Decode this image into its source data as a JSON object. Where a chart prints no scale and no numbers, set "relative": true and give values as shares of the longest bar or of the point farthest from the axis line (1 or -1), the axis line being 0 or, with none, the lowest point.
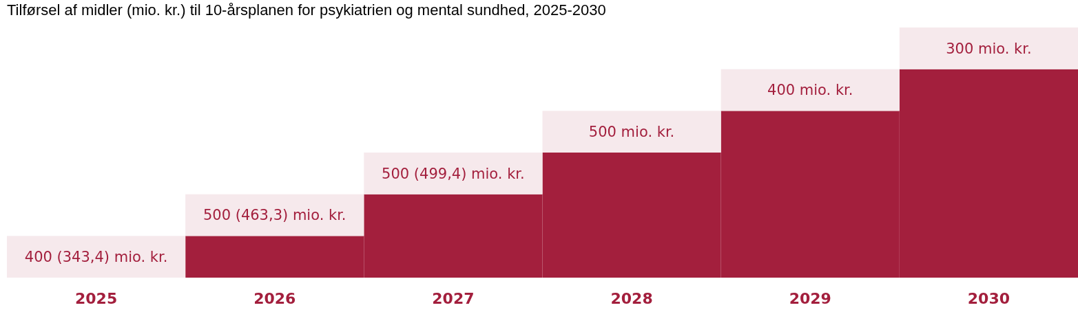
{
  "chart_data": {
    "type": "bar",
    "title": "Tilførsel af midler (mio. kr.) til 10-årsplanen for psykiatrien og mental sundhed, 2025-2030",
    "categories": [
      "2025",
      "2026",
      "2027",
      "2028",
      "2029",
      "2030"
    ],
    "stacked": true,
    "relative": true,
    "series": [
      {
        "color": "#a31f3d",
        "values": [
          0,
          0.1667,
          0.3333,
          0.5,
          0.6667,
          0.8333
        ]
      },
      {
        "color": "#f6e9ec",
        "values": [
          0.1667,
          0.1667,
          0.1667,
          0.1667,
          0.1667,
          0.1667
        ]
      }
    ],
    "annotations": [
      "400 (343,4) mio. kr.",
      "500 (463,3) mio. kr.",
      "500 (499,4) mio. kr.",
      "500 mio. kr.",
      "400 mio. kr.",
      "300 mio. kr."
    ]
  }
}
